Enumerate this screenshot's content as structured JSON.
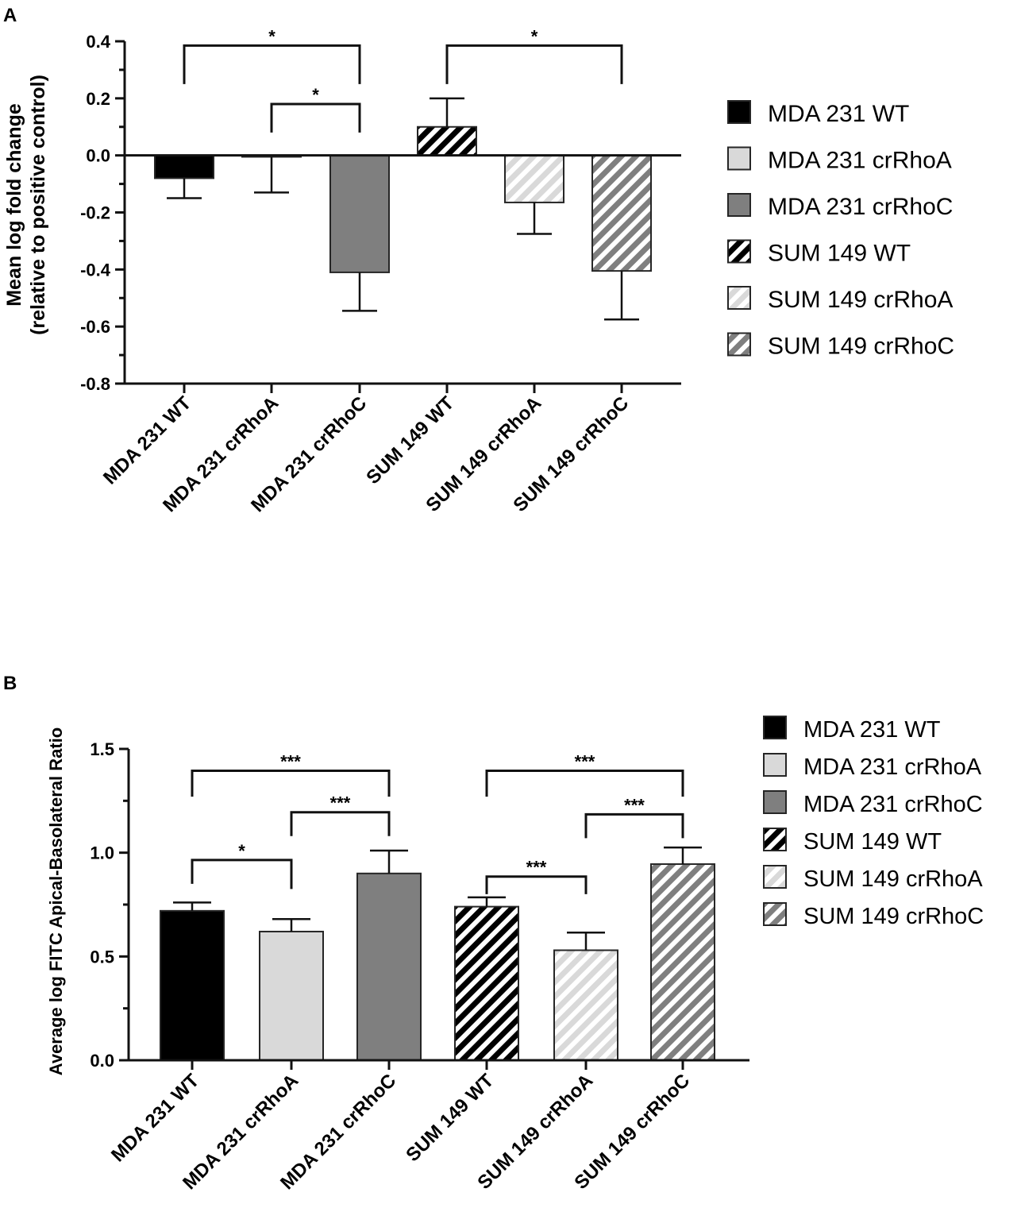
{
  "colors": {
    "wt": "#000000",
    "rhoa": "#d9d9d9",
    "rhoc": "#7f7f7f",
    "stroke": "#262626",
    "axis": "#111111",
    "stripe_light": "#ffffff"
  },
  "legend_items": [
    {
      "label": "MDA 231 WT",
      "fill": "wt",
      "hatch": false
    },
    {
      "label": "MDA 231 crRhoA",
      "fill": "rhoa",
      "hatch": false
    },
    {
      "label": "MDA 231 crRhoC",
      "fill": "rhoc",
      "hatch": false
    },
    {
      "label": "SUM 149 WT",
      "fill": "wt",
      "hatch": true
    },
    {
      "label": "SUM 149 crRhoA",
      "fill": "rhoa",
      "hatch": true
    },
    {
      "label": "SUM 149 crRhoC",
      "fill": "rhoc",
      "hatch": true
    }
  ],
  "chart_data": [
    {
      "panel_label": "A",
      "type": "bar",
      "title": "",
      "ylabel_lines": [
        "Mean log fold change",
        "(relative to positive control)"
      ],
      "xlabel": "",
      "ylim": [
        -0.8,
        0.4
      ],
      "yticks": [
        0.4,
        0.2,
        0.0,
        -0.2,
        -0.4,
        -0.6,
        -0.8
      ],
      "ytick_labels": [
        "0.4",
        "0.2",
        "0.0",
        "-0.2",
        "-0.4",
        "-0.6",
        "-0.8"
      ],
      "grid": false,
      "legend_position": "right",
      "categories": [
        "MDA 231 WT",
        "MDA 231 crRhoA",
        "MDA 231 crRhoC",
        "SUM 149 WT",
        "SUM 149 crRhoA",
        "SUM 149 crRhoC"
      ],
      "values": [
        -0.08,
        -0.005,
        -0.41,
        0.1,
        -0.165,
        -0.405
      ],
      "errors": [
        0.07,
        0.125,
        0.135,
        0.1,
        0.11,
        0.17
      ],
      "significance": [
        {
          "from": 0,
          "to": 2,
          "label": "*",
          "y_top": 0.385,
          "y_start": 0.25,
          "y_end": 0.25
        },
        {
          "from": 1,
          "to": 2,
          "label": "*",
          "y_top": 0.18,
          "y_start": 0.08,
          "y_end": 0.08
        },
        {
          "from": 3,
          "to": 5,
          "label": "*",
          "y_top": 0.385,
          "y_start": 0.25,
          "y_end": 0.25
        }
      ]
    },
    {
      "panel_label": "B",
      "type": "bar",
      "title": "",
      "ylabel_lines": [
        "Average log FITC Apical-Basolateral Ratio"
      ],
      "xlabel": "",
      "ylim": [
        0.0,
        1.5
      ],
      "yticks": [
        1.5,
        1.0,
        0.5,
        0.0
      ],
      "ytick_labels": [
        "1.5",
        "1.0",
        "0.5",
        "0.0"
      ],
      "grid": false,
      "legend_position": "right",
      "categories": [
        "MDA 231 WT",
        "MDA 231 crRhoA",
        "MDA 231 crRhoC",
        "SUM 149 WT",
        "SUM 149 crRhoA",
        "SUM 149 crRhoC"
      ],
      "values": [
        0.72,
        0.62,
        0.9,
        0.74,
        0.53,
        0.945
      ],
      "errors": [
        0.04,
        0.06,
        0.11,
        0.045,
        0.085,
        0.08
      ],
      "significance": [
        {
          "from": 0,
          "to": 2,
          "label": "***",
          "y_top": 1.395,
          "y_start": 1.27,
          "y_end": 1.27
        },
        {
          "from": 1,
          "to": 2,
          "label": "***",
          "y_top": 1.195,
          "y_start": 1.08,
          "y_end": 1.08
        },
        {
          "from": 0,
          "to": 1,
          "label": "*",
          "y_top": 0.965,
          "y_start": 0.85,
          "y_end": 0.825
        },
        {
          "from": 3,
          "to": 5,
          "label": "***",
          "y_top": 1.395,
          "y_start": 1.27,
          "y_end": 1.27
        },
        {
          "from": 4,
          "to": 5,
          "label": "***",
          "y_top": 1.185,
          "y_start": 1.07,
          "y_end": 1.07
        },
        {
          "from": 3,
          "to": 4,
          "label": "***",
          "y_top": 0.885,
          "y_start": 0.8,
          "y_end": 0.8
        }
      ]
    }
  ]
}
